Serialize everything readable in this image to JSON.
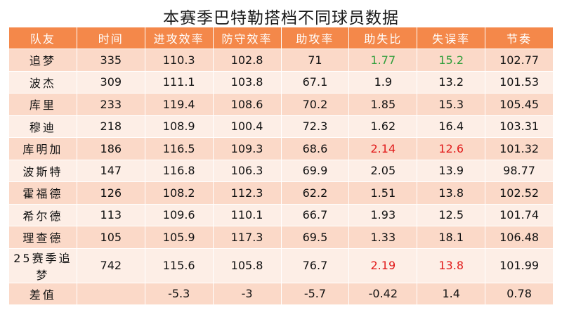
{
  "title": "本赛季巴特勒搭档不同球员数据",
  "colors": {
    "header": "#f4884a",
    "row_odd": "#fbd9c8",
    "row_even": "#fdeee6",
    "green": "#2e9e3a",
    "red": "#e11b1b"
  },
  "chart_data": {
    "type": "table",
    "title": "本赛季巴特勒搭档不同球员数据",
    "columns": [
      "队友",
      "时间",
      "进攻效率",
      "防守效率",
      "助攻率",
      "助失比",
      "失误率",
      "节奏"
    ],
    "rows": [
      [
        "追梦",
        "335",
        "110.3",
        "102.8",
        "71",
        "1.77",
        "15.2",
        "102.77"
      ],
      [
        "波杰",
        "309",
        "111.1",
        "103.8",
        "67.1",
        "1.9",
        "13.2",
        "101.53"
      ],
      [
        "库里",
        "233",
        "119.4",
        "108.6",
        "70.2",
        "1.85",
        "15.3",
        "105.45"
      ],
      [
        "穆迪",
        "218",
        "108.9",
        "100.4",
        "72.3",
        "1.62",
        "16.4",
        "103.31"
      ],
      [
        "库明加",
        "186",
        "116.5",
        "109.3",
        "68.6",
        "2.14",
        "12.6",
        "101.32"
      ],
      [
        "波斯特",
        "147",
        "116.8",
        "106.3",
        "69.9",
        "2.05",
        "13.9",
        "98.77"
      ],
      [
        "霍福德",
        "126",
        "108.2",
        "112.3",
        "62.2",
        "1.51",
        "13.8",
        "102.52"
      ],
      [
        "希尔德",
        "113",
        "109.6",
        "110.1",
        "66.7",
        "1.93",
        "12.5",
        "101.74"
      ],
      [
        "理查德",
        "105",
        "105.9",
        "117.3",
        "69.5",
        "1.33",
        "18.1",
        "106.48"
      ],
      [
        "25赛季追梦",
        "742",
        "115.6",
        "105.8",
        "76.7",
        "2.19",
        "13.8",
        "101.99"
      ],
      [
        "差值",
        "",
        "-5.3",
        "-3",
        "-5.7",
        "-0.42",
        "1.4",
        "0.78"
      ]
    ],
    "highlights": [
      {
        "row": 0,
        "col": 5,
        "color": "green"
      },
      {
        "row": 0,
        "col": 6,
        "color": "green"
      },
      {
        "row": 4,
        "col": 5,
        "color": "red"
      },
      {
        "row": 4,
        "col": 6,
        "color": "red"
      },
      {
        "row": 9,
        "col": 5,
        "color": "red"
      },
      {
        "row": 9,
        "col": 6,
        "color": "red"
      }
    ]
  }
}
